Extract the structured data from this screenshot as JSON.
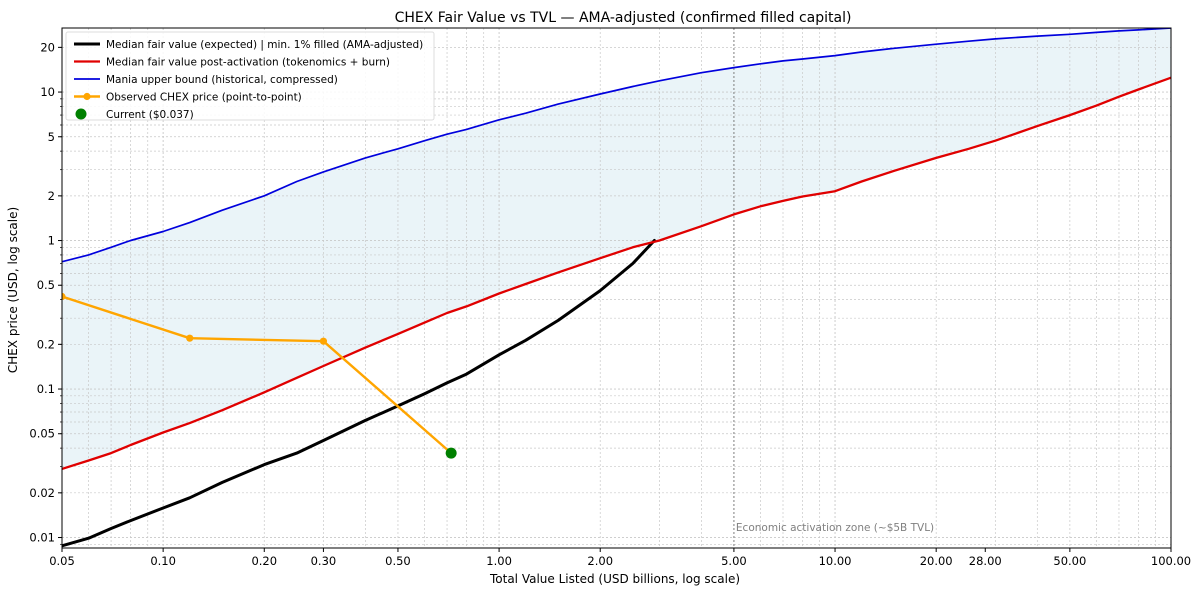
{
  "chart_data": {
    "type": "line",
    "title": "CHEX Fair Value vs TVL — AMA-adjusted (confirmed filled capital)",
    "xlabel": "Total Value Listed (USD billions, log scale)",
    "ylabel": "CHEX price (USD, log scale)",
    "x_scale": "log",
    "y_scale": "log",
    "xlim": [
      0.05,
      100
    ],
    "ylim": [
      0.0085,
      27
    ],
    "grid": true,
    "legend_position": "top-left",
    "x_ticks": [
      {
        "value": 0.05,
        "label": "0.05"
      },
      {
        "value": 0.1,
        "label": "0.10"
      },
      {
        "value": 0.2,
        "label": "0.20"
      },
      {
        "value": 0.3,
        "label": "0.30"
      },
      {
        "value": 0.5,
        "label": "0.50"
      },
      {
        "value": 1,
        "label": "1.00"
      },
      {
        "value": 2,
        "label": "2.00"
      },
      {
        "value": 5,
        "label": "5.00"
      },
      {
        "value": 10,
        "label": "10.00"
      },
      {
        "value": 20,
        "label": "20.00"
      },
      {
        "value": 28,
        "label": "28.00"
      },
      {
        "value": 50,
        "label": "50.00"
      },
      {
        "value": 100,
        "label": "100.00"
      }
    ],
    "y_ticks": [
      {
        "value": 0.01,
        "label": "0.01"
      },
      {
        "value": 0.02,
        "label": "0.02"
      },
      {
        "value": 0.05,
        "label": "0.05"
      },
      {
        "value": 0.1,
        "label": "0.1"
      },
      {
        "value": 0.2,
        "label": "0.2"
      },
      {
        "value": 0.5,
        "label": "0.5"
      },
      {
        "value": 1,
        "label": "1"
      },
      {
        "value": 2,
        "label": "2"
      },
      {
        "value": 5,
        "label": "5"
      },
      {
        "value": 10,
        "label": "10"
      },
      {
        "value": 20,
        "label": "20"
      }
    ],
    "shaded_band": {
      "lower_series": "post_activation",
      "upper_series": "mania",
      "color": "#d6eaf2"
    },
    "series": [
      {
        "id": "median",
        "name": "Median fair value (expected) | min. 1% filled (AMA-adjusted)",
        "color": "#000000",
        "points": [
          [
            0.05,
            0.0088
          ],
          [
            0.06,
            0.0099
          ],
          [
            0.07,
            0.0115
          ],
          [
            0.08,
            0.013
          ],
          [
            0.1,
            0.0158
          ],
          [
            0.12,
            0.0185
          ],
          [
            0.15,
            0.0235
          ],
          [
            0.2,
            0.031
          ],
          [
            0.25,
            0.037
          ],
          [
            0.3,
            0.045
          ],
          [
            0.4,
            0.0615
          ],
          [
            0.5,
            0.077
          ],
          [
            0.6,
            0.093
          ],
          [
            0.7,
            0.11
          ],
          [
            0.8,
            0.126
          ],
          [
            1.0,
            0.17
          ],
          [
            1.2,
            0.213
          ],
          [
            1.5,
            0.29
          ],
          [
            2.0,
            0.46
          ],
          [
            2.5,
            0.7
          ],
          [
            2.9,
            1.0
          ]
        ]
      },
      {
        "id": "post_activation",
        "name": "Median fair value post-activation (tokenomics + burn)",
        "color": "#e00000",
        "points": [
          [
            0.05,
            0.029
          ],
          [
            0.06,
            0.033
          ],
          [
            0.07,
            0.037
          ],
          [
            0.08,
            0.042
          ],
          [
            0.1,
            0.051
          ],
          [
            0.12,
            0.059
          ],
          [
            0.15,
            0.072
          ],
          [
            0.2,
            0.095
          ],
          [
            0.25,
            0.119
          ],
          [
            0.3,
            0.143
          ],
          [
            0.4,
            0.19
          ],
          [
            0.5,
            0.235
          ],
          [
            0.6,
            0.28
          ],
          [
            0.7,
            0.325
          ],
          [
            0.8,
            0.36
          ],
          [
            1.0,
            0.44
          ],
          [
            1.2,
            0.51
          ],
          [
            1.5,
            0.61
          ],
          [
            2.0,
            0.76
          ],
          [
            2.5,
            0.9
          ],
          [
            3.0,
            1.0
          ],
          [
            4.0,
            1.25
          ],
          [
            5.0,
            1.5
          ],
          [
            6.0,
            1.7
          ],
          [
            7.0,
            1.85
          ],
          [
            8.0,
            1.98
          ],
          [
            10.0,
            2.15
          ],
          [
            12.0,
            2.5
          ],
          [
            15.0,
            2.95
          ],
          [
            20.0,
            3.6
          ],
          [
            25.0,
            4.15
          ],
          [
            30.0,
            4.7
          ],
          [
            40.0,
            5.9
          ],
          [
            50.0,
            7.0
          ],
          [
            60.0,
            8.1
          ],
          [
            70.0,
            9.3
          ],
          [
            80.0,
            10.4
          ],
          [
            100.0,
            12.5
          ]
        ]
      },
      {
        "id": "mania",
        "name": "Mania upper bound (historical, compressed)",
        "color": "#0000dd",
        "points": [
          [
            0.05,
            0.72
          ],
          [
            0.06,
            0.8
          ],
          [
            0.07,
            0.9
          ],
          [
            0.08,
            1.0
          ],
          [
            0.1,
            1.15
          ],
          [
            0.12,
            1.32
          ],
          [
            0.15,
            1.6
          ],
          [
            0.2,
            2.0
          ],
          [
            0.25,
            2.5
          ],
          [
            0.3,
            2.9
          ],
          [
            0.4,
            3.6
          ],
          [
            0.5,
            4.15
          ],
          [
            0.6,
            4.7
          ],
          [
            0.7,
            5.2
          ],
          [
            0.8,
            5.6
          ],
          [
            1.0,
            6.5
          ],
          [
            1.2,
            7.2
          ],
          [
            1.5,
            8.3
          ],
          [
            2.0,
            9.7
          ],
          [
            2.5,
            10.9
          ],
          [
            3.0,
            11.9
          ],
          [
            4.0,
            13.5
          ],
          [
            5.0,
            14.6
          ],
          [
            6.0,
            15.5
          ],
          [
            7.0,
            16.2
          ],
          [
            8.0,
            16.7
          ],
          [
            10.0,
            17.6
          ],
          [
            12.0,
            18.6
          ],
          [
            15.0,
            19.7
          ],
          [
            20.0,
            21.0
          ],
          [
            25.0,
            22.0
          ],
          [
            30.0,
            22.8
          ],
          [
            40.0,
            23.8
          ],
          [
            50.0,
            24.5
          ],
          [
            60.0,
            25.2
          ],
          [
            70.0,
            25.8
          ],
          [
            80.0,
            26.2
          ],
          [
            100.0,
            27.0
          ]
        ]
      },
      {
        "id": "observed",
        "name": "Observed CHEX price (point-to-point)",
        "color": "#ffa500",
        "points": [
          [
            0.05,
            0.42
          ],
          [
            0.12,
            0.22
          ],
          [
            0.3,
            0.21
          ],
          [
            0.72,
            0.037
          ]
        ]
      },
      {
        "id": "current",
        "name": "Current ($0.037)",
        "color": "#008000",
        "points": [
          [
            0.72,
            0.037
          ]
        ]
      }
    ],
    "annotations": [
      {
        "type": "vline",
        "x": 5.0,
        "color": "#808080",
        "text": "Economic activation zone (~$5B TVL)",
        "text_y": 0.0118
      }
    ]
  }
}
